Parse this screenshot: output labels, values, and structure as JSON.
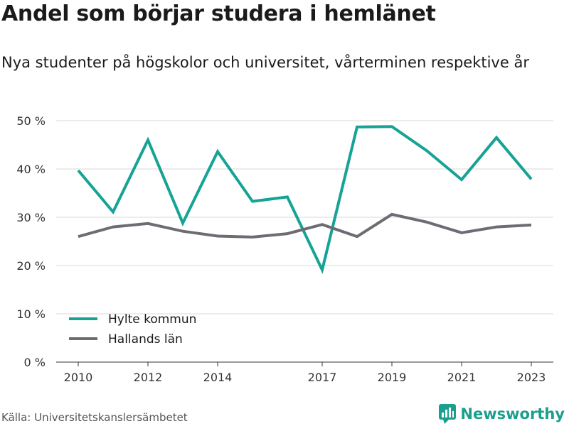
{
  "chart_data": {
    "type": "line",
    "title": "Andel som börjar studera i hemlänet",
    "subtitle": "Nya studenter på högskolor och universitet, vårterminen respektive år",
    "x": [
      2010,
      2011,
      2012,
      2013,
      2014,
      2015,
      2016,
      2017,
      2018,
      2019,
      2020,
      2021,
      2022,
      2023
    ],
    "x_tick_labels": [
      "2010",
      "2012",
      "2014",
      "2017",
      "2019",
      "2021",
      "2023"
    ],
    "y_tick_labels": [
      "0 %",
      "10 %",
      "20 %",
      "30 %",
      "40 %",
      "50 %"
    ],
    "ylim": [
      0,
      50
    ],
    "grid": true,
    "legend_position": "bottom-left",
    "series": [
      {
        "name": "Hylte kommun",
        "color": "#16a395",
        "values": [
          39.7,
          31.1,
          46.0,
          28.8,
          43.6,
          33.3,
          34.2,
          19.1,
          48.7,
          48.8,
          43.8,
          37.8,
          46.5,
          37.9
        ]
      },
      {
        "name": "Hallands län",
        "color": "#6e6c73",
        "values": [
          26.0,
          28.0,
          28.7,
          27.1,
          26.1,
          25.9,
          26.6,
          28.5,
          26.0,
          30.6,
          29.0,
          26.8,
          28.0,
          28.4
        ]
      }
    ]
  },
  "footer": {
    "source": "Källa: Universitetskanslersämbetet",
    "brand": "Newsworthy",
    "brand_color": "#1a9e8e",
    "brand_icon": "newsworthy-bar-chart-logo"
  }
}
